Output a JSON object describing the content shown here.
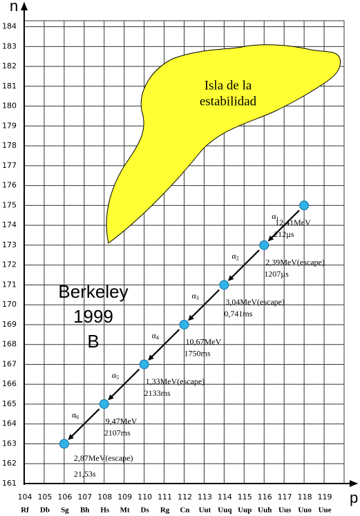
{
  "chart_data": {
    "type": "scatter",
    "x_label": "p",
    "y_label": "n",
    "x": [
      118,
      116,
      114,
      112,
      110,
      108,
      106
    ],
    "y": [
      175,
      173,
      171,
      169,
      167,
      165,
      163
    ],
    "color": "#2fb3e8",
    "xlim": [
      104,
      120
    ],
    "ylim": [
      161,
      184.3
    ],
    "xticks": [
      104,
      105,
      106,
      107,
      108,
      109,
      110,
      111,
      112,
      113,
      114,
      115,
      116,
      117,
      118,
      119
    ],
    "yticks": [
      161,
      162,
      163,
      164,
      165,
      166,
      167,
      168,
      169,
      170,
      171,
      172,
      173,
      174,
      175,
      176,
      177,
      178,
      179,
      180,
      181,
      182,
      183,
      184
    ],
    "grid": true,
    "element_labels": [
      "Rf",
      "Db",
      "Sg",
      "Bh",
      "Hs",
      "Mt",
      "Ds",
      "Rg",
      "Cn",
      "Uut",
      "Uuq",
      "Uup",
      "Uuh",
      "Uus",
      "Uuo",
      "Uue"
    ],
    "decays": [
      {
        "symbol": "α",
        "index": "1",
        "energy": "12,41MeV",
        "time": "212µs"
      },
      {
        "symbol": "α",
        "index": "2",
        "energy": "2,39MeV(escape)",
        "time": "1207µs"
      },
      {
        "symbol": "α",
        "index": "3",
        "energy": "3,04MeV(escape)",
        "time": "0,741ms"
      },
      {
        "symbol": "α",
        "index": "4",
        "energy": "10,67MeV",
        "time": "1750ms"
      },
      {
        "symbol": "α",
        "index": "5",
        "energy": "1,33MeV(escape)",
        "time": "2133ms"
      },
      {
        "symbol": "α",
        "index": "6",
        "energy": "9,47MeV",
        "time": "2107ms"
      }
    ],
    "final_decay": {
      "energy": "2,87MeV(escape)",
      "time": "21,53s"
    },
    "island_label": [
      "Isla de la",
      "estabilidad"
    ],
    "group_label": [
      "Berkeley",
      "1999",
      "B"
    ]
  }
}
